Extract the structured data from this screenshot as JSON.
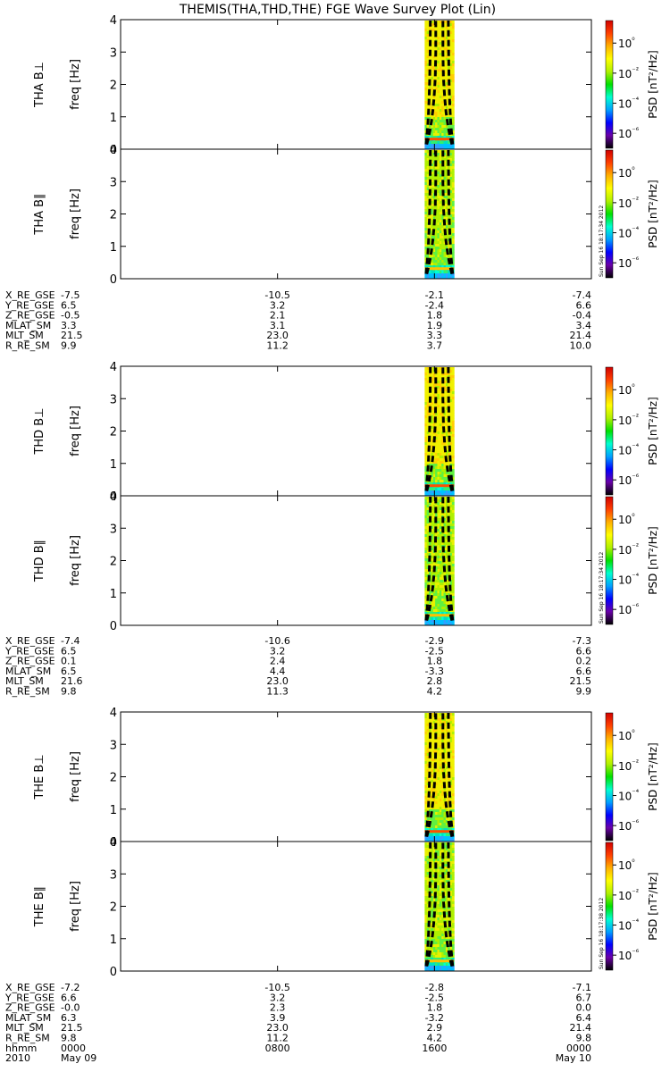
{
  "title": "THEMIS(THA,THD,THE) FGE Wave Survey Plot (Lin)",
  "chart_data": {
    "type": "heatmap",
    "x_axis": {
      "label": "hhmm",
      "year": "2010",
      "ticks": [
        "0000",
        "0800",
        "1600",
        "0000"
      ],
      "tick_dates": [
        "May 09",
        "",
        "",
        "May 10"
      ],
      "range_hours": [
        0,
        24
      ]
    },
    "freq_range_hz": [
      0,
      4
    ],
    "y_ticks": [
      "0",
      "1",
      "2",
      "3",
      "4"
    ],
    "y_axis_label": "freq [Hz]",
    "colorbar": {
      "label": "PSD [nT²/Hz]",
      "ticks": [
        "10⁰",
        "10⁻²",
        "10⁻⁴",
        "10⁻⁶"
      ],
      "log_range": [
        -7,
        1.5
      ],
      "colors": [
        "#000000",
        "#6a00a8",
        "#0000ff",
        "#00a0ff",
        "#00ffd0",
        "#00e000",
        "#b0f000",
        "#ffff00",
        "#ffb000",
        "#ff4000",
        "#d00000"
      ]
    },
    "data_window_hours": [
      15.5,
      17.0
    ],
    "probes": [
      {
        "id": "THA",
        "panels": [
          {
            "label": "THA B⊥",
            "timestamp": ""
          },
          {
            "label": "THA B∥",
            "timestamp": "Sun Sep 16 18:17:34 2012"
          }
        ],
        "orbit_rows": [
          {
            "label": "X_RE_GSE",
            "values": [
              "-7.5",
              "-10.5",
              "-2.1",
              "-7.4"
            ]
          },
          {
            "label": "Y_RE_GSE",
            "values": [
              "6.5",
              "3.2",
              "-2.4",
              "6.6"
            ]
          },
          {
            "label": "Z_RE_GSE",
            "values": [
              "-0.5",
              "2.1",
              "1.8",
              "-0.4"
            ]
          },
          {
            "label": "MLAT_SM",
            "values": [
              "3.3",
              "3.1",
              "1.9",
              "3.4"
            ]
          },
          {
            "label": "MLT_SM",
            "values": [
              "21.5",
              "23.0",
              "3.3",
              "21.4"
            ]
          },
          {
            "label": "R_RE_SM",
            "values": [
              "9.9",
              "11.2",
              "3.7",
              "10.0"
            ]
          }
        ]
      },
      {
        "id": "THD",
        "panels": [
          {
            "label": "THD B⊥",
            "timestamp": ""
          },
          {
            "label": "THD B∥",
            "timestamp": "Sun Sep 16 18:17:34 2012"
          }
        ],
        "orbit_rows": [
          {
            "label": "X_RE_GSE",
            "values": [
              "-7.4",
              "-10.6",
              "-2.9",
              "-7.3"
            ]
          },
          {
            "label": "Y_RE_GSE",
            "values": [
              "6.5",
              "3.2",
              "-2.5",
              "6.6"
            ]
          },
          {
            "label": "Z_RE_GSE",
            "values": [
              "0.1",
              "2.4",
              "1.8",
              "0.2"
            ]
          },
          {
            "label": "MLAT_SM",
            "values": [
              "6.5",
              "4.4",
              "-3.3",
              "6.6"
            ]
          },
          {
            "label": "MLT_SM",
            "values": [
              "21.6",
              "23.0",
              "2.8",
              "21.5"
            ]
          },
          {
            "label": "R_RE_SM",
            "values": [
              "9.8",
              "11.3",
              "4.2",
              "9.9"
            ]
          }
        ]
      },
      {
        "id": "THE",
        "panels": [
          {
            "label": "THE B⊥",
            "timestamp": ""
          },
          {
            "label": "THE B∥",
            "timestamp": "Sun Sep 16 18:17:38 2012"
          }
        ],
        "orbit_rows": [
          {
            "label": "X_RE_GSE",
            "values": [
              "-7.2",
              "-10.5",
              "-2.8",
              "-7.1"
            ]
          },
          {
            "label": "Y_RE_GSE",
            "values": [
              "6.6",
              "3.2",
              "-2.5",
              "6.7"
            ]
          },
          {
            "label": "Z_RE_GSE",
            "values": [
              "-0.0",
              "2.3",
              "1.8",
              "0.0"
            ]
          },
          {
            "label": "MLAT_SM",
            "values": [
              "6.3",
              "3.9",
              "-3.2",
              "6.4"
            ]
          },
          {
            "label": "MLT_SM",
            "values": [
              "21.5",
              "23.0",
              "2.9",
              "21.4"
            ]
          },
          {
            "label": "R_RE_SM",
            "values": [
              "9.8",
              "11.2",
              "4.2",
              "9.8"
            ]
          }
        ]
      }
    ]
  }
}
